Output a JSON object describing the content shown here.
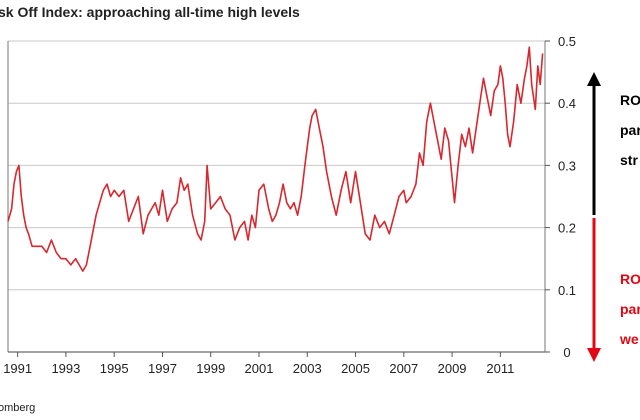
{
  "title": "sk Off Index: approaching all-time high levels",
  "source": "omberg",
  "annotations": {
    "upper": [
      "RO",
      "par",
      "str"
    ],
    "lower": [
      "RO",
      "par",
      "we"
    ]
  },
  "colors": {
    "series": "#d9272e",
    "arrow_up": "#000000",
    "arrow_down": "#e30613",
    "upper_text": "#000000",
    "lower_text": "#e30613",
    "grid": "#c8c8c8"
  },
  "chart_data": {
    "type": "line",
    "title": "sk Off Index: approaching all-time high levels",
    "xlabel": "",
    "ylabel": "",
    "xlim": [
      1990.6,
      2012.85
    ],
    "ylim": [
      0,
      0.5
    ],
    "grid": true,
    "legend": "none",
    "x_ticks": [
      {
        "value": 1991,
        "label": "1991"
      },
      {
        "value": 1993,
        "label": "1993"
      },
      {
        "value": 1995,
        "label": "1995"
      },
      {
        "value": 1997,
        "label": "1997"
      },
      {
        "value": 1999,
        "label": "1999"
      },
      {
        "value": 2001,
        "label": "2001"
      },
      {
        "value": 2003,
        "label": "2003"
      },
      {
        "value": 2005,
        "label": "2005"
      },
      {
        "value": 2007,
        "label": "2007"
      },
      {
        "value": 2009,
        "label": "2009"
      },
      {
        "value": 2011,
        "label": "2011"
      }
    ],
    "y_ticks": [
      {
        "value": 0,
        "label": "0"
      },
      {
        "value": 0.1,
        "label": "0.1"
      },
      {
        "value": 0.2,
        "label": "0.2"
      },
      {
        "value": 0.3,
        "label": "0.3"
      },
      {
        "value": 0.4,
        "label": "0.4"
      },
      {
        "value": 0.5,
        "label": "0.5"
      }
    ],
    "series": [
      {
        "x": [
          1990.6,
          1990.75,
          1990.85,
          1990.95,
          1991.05,
          1991.15,
          1991.25,
          1991.35,
          1991.45,
          1991.6,
          1991.8,
          1992.0,
          1992.2,
          1992.4,
          1992.6,
          1992.8,
          1993.0,
          1993.2,
          1993.4,
          1993.55,
          1993.7,
          1993.85,
          1994.0,
          1994.1,
          1994.25,
          1994.4,
          1994.55,
          1994.7,
          1994.85,
          1995.0,
          1995.2,
          1995.4,
          1995.6,
          1995.8,
          1996.0,
          1996.2,
          1996.4,
          1996.55,
          1996.7,
          1996.85,
          1997.0,
          1997.2,
          1997.4,
          1997.6,
          1997.75,
          1997.9,
          1998.05,
          1998.25,
          1998.45,
          1998.6,
          1998.75,
          1998.85,
          1999.0,
          1999.2,
          1999.4,
          1999.6,
          1999.8,
          2000.0,
          2000.2,
          2000.4,
          2000.55,
          2000.7,
          2000.85,
          2001.0,
          2001.2,
          2001.4,
          2001.55,
          2001.7,
          2001.85,
          2002.0,
          2002.15,
          2002.3,
          2002.45,
          2002.6,
          2002.75,
          2002.9,
          2003.0,
          2003.1,
          2003.2,
          2003.35,
          2003.5,
          2003.65,
          2003.8,
          2004.0,
          2004.2,
          2004.4,
          2004.6,
          2004.8,
          2005.0,
          2005.2,
          2005.4,
          2005.6,
          2005.8,
          2006.0,
          2006.2,
          2006.4,
          2006.6,
          2006.8,
          2007.0,
          2007.1,
          2007.3,
          2007.5,
          2007.65,
          2007.8,
          2007.95,
          2008.1,
          2008.25,
          2008.4,
          2008.55,
          2008.7,
          2008.85,
          2009.0,
          2009.1,
          2009.25,
          2009.4,
          2009.55,
          2009.7,
          2009.85,
          2010.0,
          2010.15,
          2010.3,
          2010.45,
          2010.6,
          2010.75,
          2010.9,
          2011.0,
          2011.1,
          2011.2,
          2011.3,
          2011.4,
          2011.55,
          2011.7,
          2011.85,
          2012.0,
          2012.1,
          2012.2,
          2012.3,
          2012.45,
          2012.55,
          2012.65,
          2012.75
        ],
        "y": [
          0.21,
          0.23,
          0.27,
          0.29,
          0.3,
          0.25,
          0.22,
          0.2,
          0.19,
          0.17,
          0.17,
          0.17,
          0.16,
          0.18,
          0.16,
          0.15,
          0.15,
          0.14,
          0.15,
          0.14,
          0.13,
          0.14,
          0.17,
          0.19,
          0.22,
          0.24,
          0.26,
          0.27,
          0.25,
          0.26,
          0.25,
          0.26,
          0.21,
          0.23,
          0.25,
          0.19,
          0.22,
          0.23,
          0.24,
          0.22,
          0.26,
          0.21,
          0.23,
          0.24,
          0.28,
          0.26,
          0.27,
          0.22,
          0.19,
          0.18,
          0.21,
          0.3,
          0.23,
          0.24,
          0.25,
          0.23,
          0.22,
          0.18,
          0.2,
          0.21,
          0.18,
          0.22,
          0.2,
          0.26,
          0.27,
          0.23,
          0.21,
          0.22,
          0.24,
          0.27,
          0.24,
          0.23,
          0.24,
          0.22,
          0.25,
          0.3,
          0.33,
          0.36,
          0.38,
          0.39,
          0.36,
          0.33,
          0.29,
          0.25,
          0.22,
          0.26,
          0.29,
          0.24,
          0.29,
          0.24,
          0.19,
          0.18,
          0.22,
          0.2,
          0.21,
          0.19,
          0.22,
          0.25,
          0.26,
          0.24,
          0.25,
          0.27,
          0.32,
          0.3,
          0.37,
          0.4,
          0.37,
          0.34,
          0.31,
          0.36,
          0.34,
          0.28,
          0.24,
          0.3,
          0.35,
          0.33,
          0.36,
          0.32,
          0.36,
          0.4,
          0.44,
          0.41,
          0.38,
          0.42,
          0.43,
          0.46,
          0.44,
          0.4,
          0.35,
          0.33,
          0.37,
          0.43,
          0.4,
          0.44,
          0.46,
          0.49,
          0.43,
          0.39,
          0.46,
          0.43,
          0.48
        ]
      }
    ]
  }
}
